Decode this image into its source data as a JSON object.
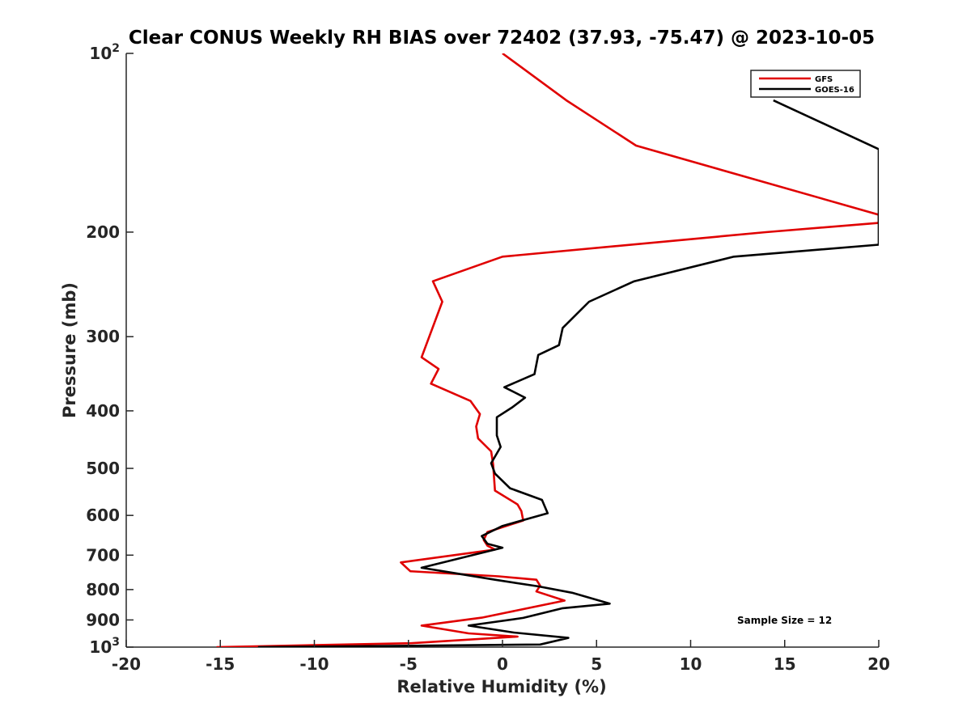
{
  "chart_data": {
    "type": "line",
    "title": "Clear CONUS Weekly RH BIAS over 72402 (37.93, -75.47) @ 2023-10-05",
    "xlabel": "Relative Humidity (%)",
    "ylabel": "Pressure (mb)",
    "xlim": [
      -20,
      20
    ],
    "ylim": [
      100,
      1000
    ],
    "yscale": "log",
    "y_reversed": true,
    "grid": false,
    "x_ticks": [
      -20,
      -15,
      -10,
      -5,
      0,
      5,
      10,
      15,
      20
    ],
    "x_tick_labels": [
      "-20",
      "-15",
      "-10",
      "-5",
      "0",
      "5",
      "10",
      "15",
      "20"
    ],
    "y_ticks": [
      {
        "value": 100,
        "label": "10",
        "exp": "2"
      },
      {
        "value": 200,
        "label": "200"
      },
      {
        "value": 300,
        "label": "300"
      },
      {
        "value": 400,
        "label": "400"
      },
      {
        "value": 500,
        "label": "500"
      },
      {
        "value": 600,
        "label": "600"
      },
      {
        "value": 700,
        "label": "700"
      },
      {
        "value": 800,
        "label": "800"
      },
      {
        "value": 900,
        "label": "900"
      },
      {
        "value": 1000,
        "label": "10",
        "exp": "3"
      }
    ],
    "legend": {
      "position": "top-right"
    },
    "annotation": "Sample Size = 12",
    "series": [
      {
        "name": "GFS",
        "color": "#e00000",
        "points": [
          [
            0.0,
            100
          ],
          [
            3.4,
            120
          ],
          [
            7.1,
            143
          ],
          [
            20.0,
            187
          ],
          [
            20.0,
            193
          ],
          [
            14.0,
            200
          ],
          [
            0.0,
            220
          ],
          [
            -3.7,
            242
          ],
          [
            -3.2,
            262
          ],
          [
            -4.3,
            325
          ],
          [
            -3.4,
            340
          ],
          [
            -3.8,
            360
          ],
          [
            -1.7,
            385
          ],
          [
            -1.2,
            405
          ],
          [
            -1.4,
            425
          ],
          [
            -1.3,
            445
          ],
          [
            -0.6,
            468
          ],
          [
            -0.5,
            492
          ],
          [
            -0.4,
            545
          ],
          [
            0.8,
            575
          ],
          [
            1.0,
            590
          ],
          [
            1.1,
            612
          ],
          [
            -0.8,
            640
          ],
          [
            -1.0,
            660
          ],
          [
            -0.8,
            675
          ],
          [
            -0.4,
            685
          ],
          [
            -5.4,
            720
          ],
          [
            -4.9,
            745
          ],
          [
            -0.2,
            760
          ],
          [
            1.8,
            770
          ],
          [
            2.0,
            788
          ],
          [
            1.8,
            806
          ],
          [
            3.3,
            835
          ],
          [
            0.2,
            875
          ],
          [
            -1.1,
            892
          ],
          [
            -4.3,
            920
          ],
          [
            -1.8,
            948
          ],
          [
            0.8,
            960
          ],
          [
            -4.9,
            985
          ],
          [
            -15.2,
            1000
          ]
        ]
      },
      {
        "name": "GOES-16",
        "color": "#000000",
        "points": [
          [
            14.4,
            120
          ],
          [
            20.0,
            145
          ],
          [
            20.0,
            210
          ],
          [
            12.3,
            220
          ],
          [
            7.0,
            242
          ],
          [
            4.6,
            262
          ],
          [
            3.2,
            290
          ],
          [
            3.0,
            310
          ],
          [
            1.9,
            322
          ],
          [
            1.7,
            347
          ],
          [
            0.1,
            365
          ],
          [
            1.2,
            380
          ],
          [
            0.5,
            395
          ],
          [
            -0.3,
            410
          ],
          [
            -0.3,
            440
          ],
          [
            -0.1,
            460
          ],
          [
            -0.6,
            490
          ],
          [
            -0.4,
            510
          ],
          [
            0.4,
            540
          ],
          [
            2.1,
            565
          ],
          [
            2.4,
            595
          ],
          [
            0.0,
            625
          ],
          [
            -1.1,
            650
          ],
          [
            -0.8,
            670
          ],
          [
            0.0,
            680
          ],
          [
            -4.3,
            735
          ],
          [
            -2.6,
            750
          ],
          [
            -0.4,
            770
          ],
          [
            1.9,
            790
          ],
          [
            3.7,
            810
          ],
          [
            5.7,
            845
          ],
          [
            3.2,
            860
          ],
          [
            1.1,
            893
          ],
          [
            -1.8,
            920
          ],
          [
            0.6,
            945
          ],
          [
            3.5,
            965
          ],
          [
            2.0,
            990
          ],
          [
            -13.0,
            1000
          ]
        ]
      }
    ]
  }
}
